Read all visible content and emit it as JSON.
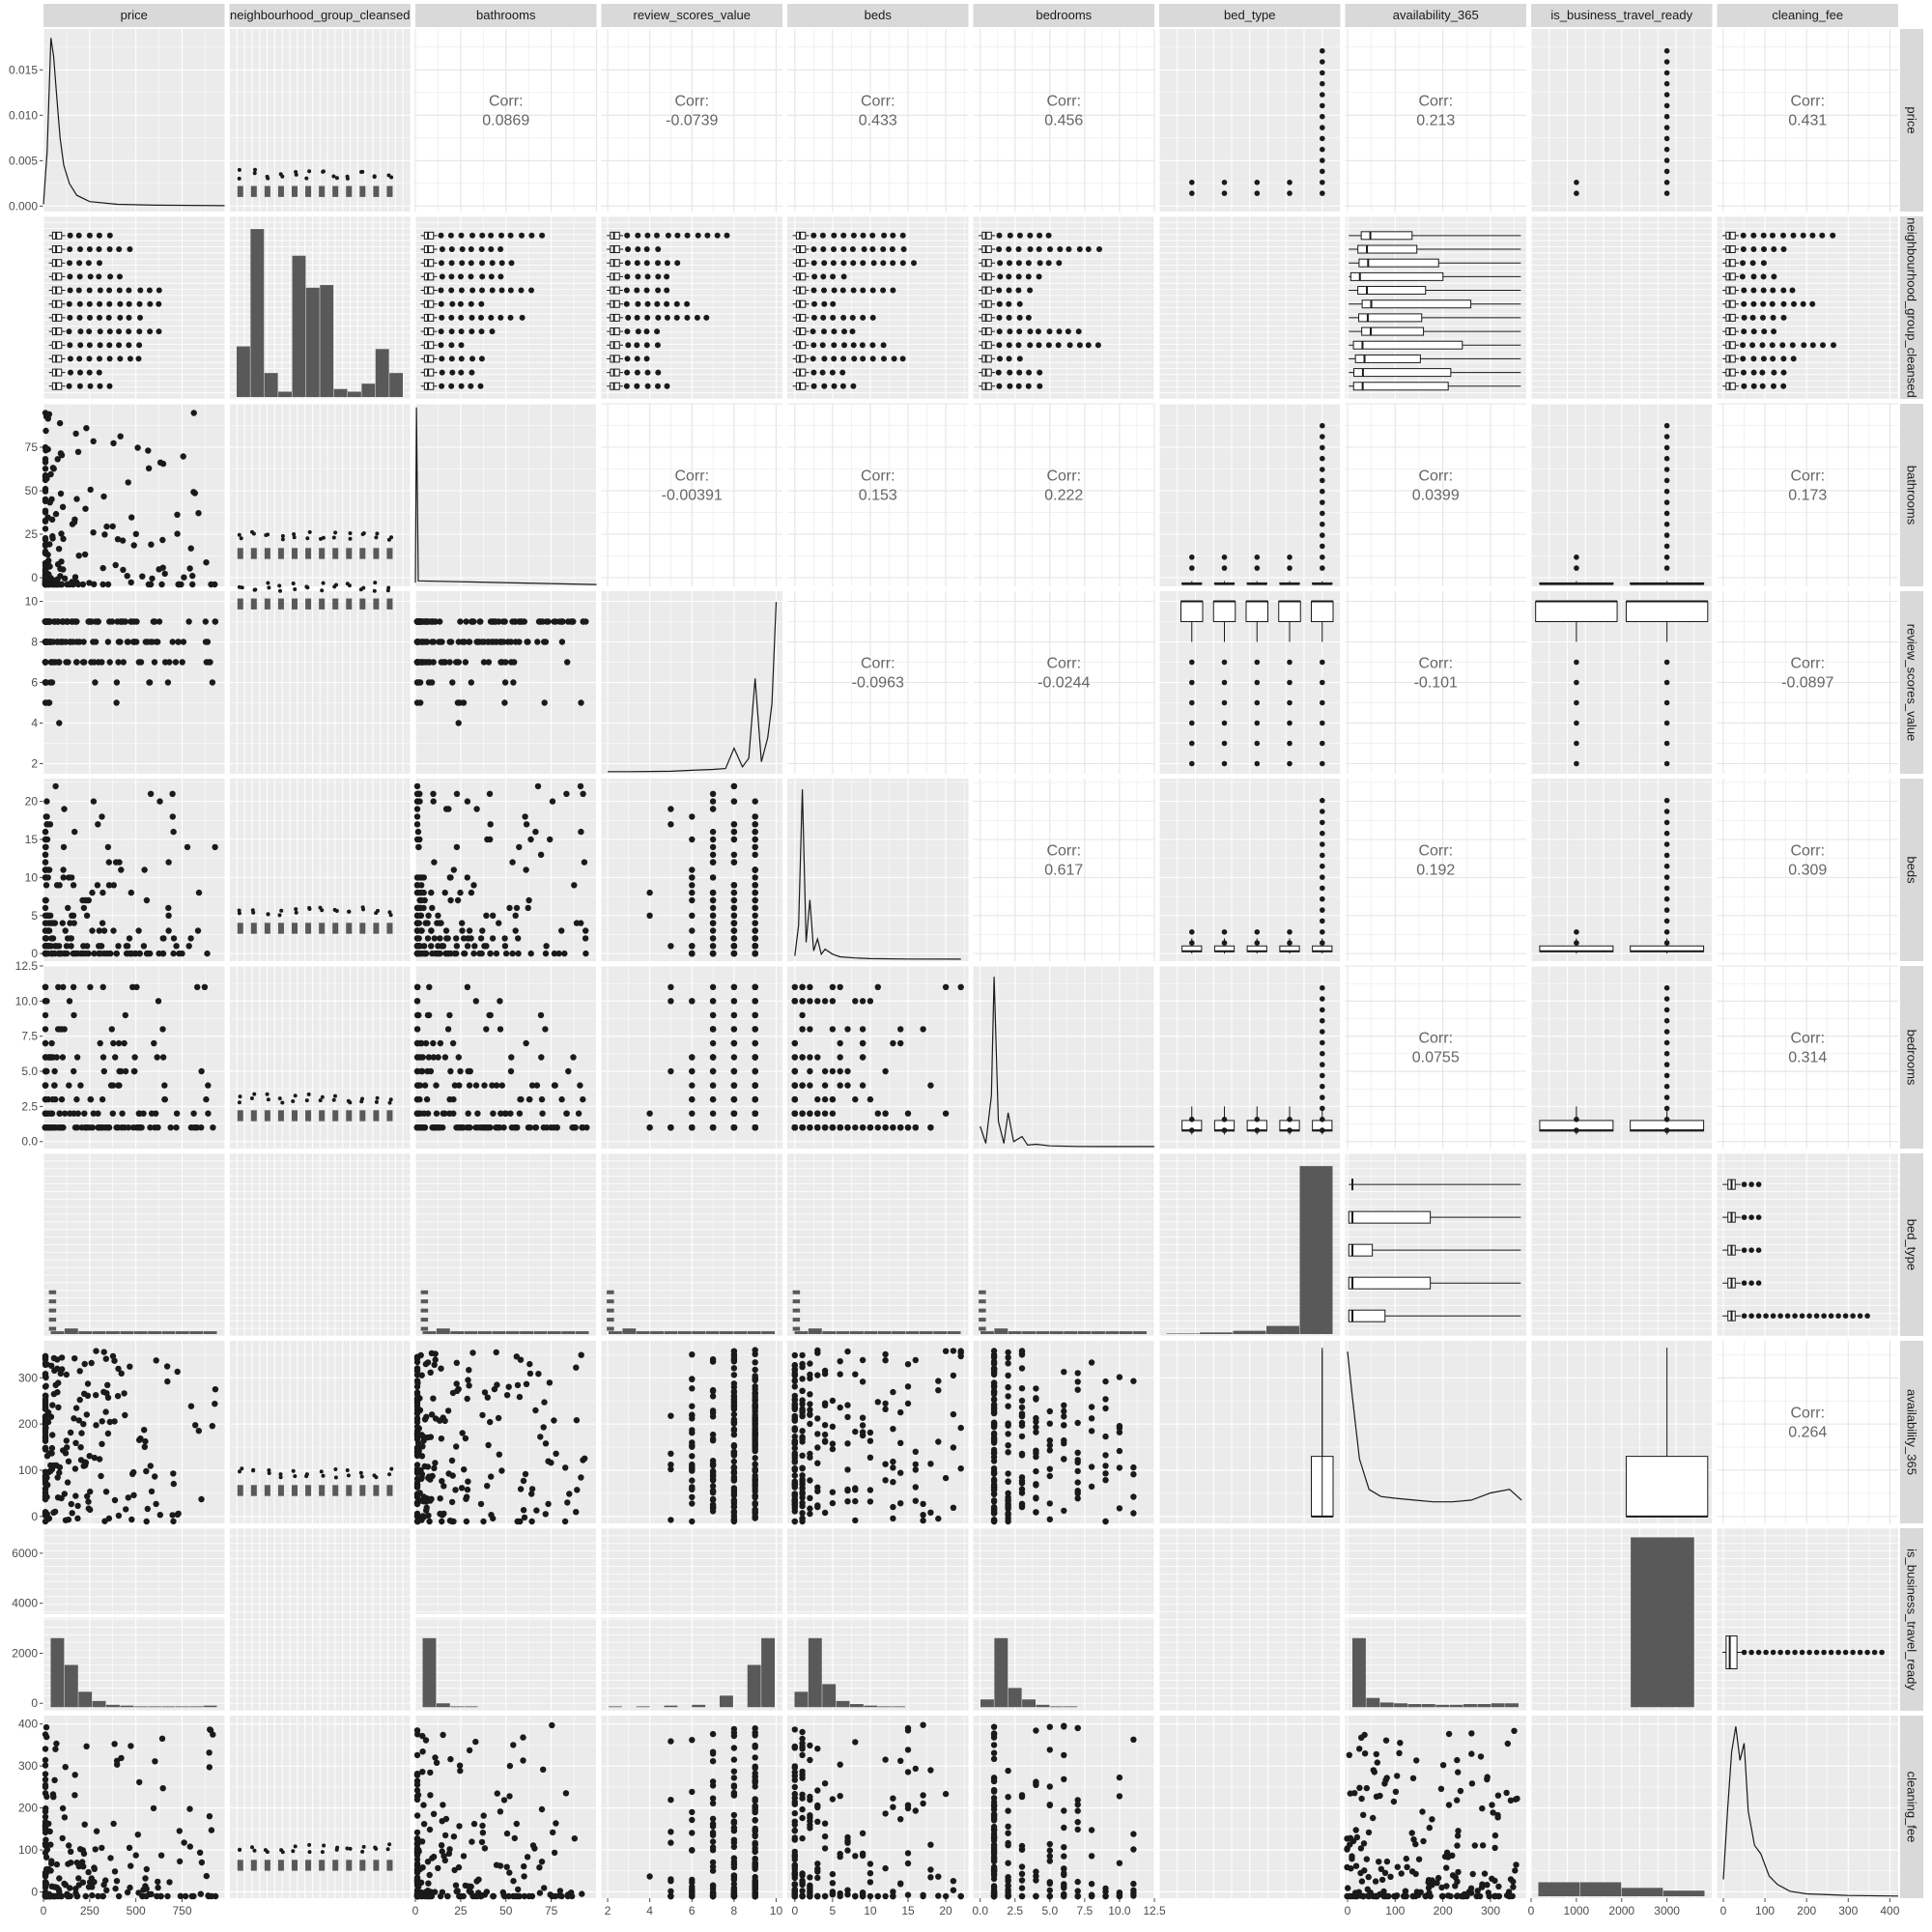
{
  "chart_data": {
    "type": "pairs",
    "grid": true,
    "legend": "none",
    "colors": {
      "panel_bg": "#ebebeb",
      "grid_line": "#ffffff",
      "strip_bg": "#d9d9d9",
      "mark": "#1a1a1a",
      "bar_fill": "#595959",
      "corr_text": "#666666"
    },
    "variables": [
      "price",
      "neighbourhood_group_cleansed",
      "bathrooms",
      "review_scores_value",
      "beds",
      "bedrooms",
      "bed_type",
      "availability_365",
      "is_business_travel_ready",
      "cleaning_fee"
    ],
    "column_ticks": [
      [
        "0",
        "250",
        "500",
        "750"
      ],
      [],
      [
        "0",
        "25",
        "50",
        "75"
      ],
      [
        "2",
        "4",
        "6",
        "8",
        "10"
      ],
      [
        "0",
        "5",
        "10",
        "15",
        "20"
      ],
      [
        "0.0",
        "2.5",
        "5.0",
        "7.5",
        "10.0",
        "12.5"
      ],
      [],
      [
        "0",
        "100",
        "200",
        "300"
      ],
      [
        "0",
        "1000",
        "2000",
        "3000"
      ],
      [
        "0",
        "100",
        "200",
        "300",
        "400"
      ]
    ],
    "column_xlim": [
      [
        0,
        980
      ],
      [
        0,
        1
      ],
      [
        0,
        100
      ],
      [
        1.7,
        10.3
      ],
      [
        -1,
        23
      ],
      [
        -0.5,
        12.5
      ],
      [
        0,
        1
      ],
      [
        -5,
        375
      ],
      [
        0,
        4000
      ],
      [
        -15,
        420
      ]
    ],
    "row_ticks": [
      [
        "0.000",
        "0.005",
        "0.010",
        "0.015"
      ],
      [],
      [
        "0",
        "25",
        "50",
        "75"
      ],
      [
        "2",
        "4",
        "6",
        "8",
        "10"
      ],
      [
        "0",
        "5",
        "10",
        "15",
        "20"
      ],
      [
        "0.0",
        "2.5",
        "5.0",
        "7.5",
        "10.0",
        "12.5"
      ],
      [],
      [
        "0",
        "100",
        "200",
        "300"
      ],
      [
        "0",
        "2000",
        "4000",
        "6000"
      ],
      [
        "0",
        "100",
        "200",
        "300",
        "400"
      ]
    ],
    "row_ylim": [
      [
        -0.0006,
        0.0195
      ],
      [
        0,
        1
      ],
      [
        -5,
        100
      ],
      [
        1.5,
        10.5
      ],
      [
        -1,
        23
      ],
      [
        -0.5,
        12.5
      ],
      [
        0,
        1
      ],
      [
        -15,
        380
      ],
      [
        -300,
        7000
      ],
      [
        -15,
        420
      ]
    ],
    "correlations": [
      {
        "row": 0,
        "col": 2,
        "label": "Corr:",
        "value": "0.0869"
      },
      {
        "row": 0,
        "col": 3,
        "label": "Corr:",
        "value": "-0.0739"
      },
      {
        "row": 0,
        "col": 4,
        "label": "Corr:",
        "value": "0.433"
      },
      {
        "row": 0,
        "col": 5,
        "label": "Corr:",
        "value": "0.456"
      },
      {
        "row": 0,
        "col": 7,
        "label": "Corr:",
        "value": "0.213"
      },
      {
        "row": 0,
        "col": 9,
        "label": "Corr:",
        "value": "0.431"
      },
      {
        "row": 2,
        "col": 3,
        "label": "Corr:",
        "value": "-0.00391"
      },
      {
        "row": 2,
        "col": 4,
        "label": "Corr:",
        "value": "0.153"
      },
      {
        "row": 2,
        "col": 5,
        "label": "Corr:",
        "value": "0.222"
      },
      {
        "row": 2,
        "col": 7,
        "label": "Corr:",
        "value": "0.0399"
      },
      {
        "row": 2,
        "col": 9,
        "label": "Corr:",
        "value": "0.173"
      },
      {
        "row": 3,
        "col": 4,
        "label": "Corr:",
        "value": "-0.0963"
      },
      {
        "row": 3,
        "col": 5,
        "label": "Corr:",
        "value": "-0.0244"
      },
      {
        "row": 3,
        "col": 7,
        "label": "Corr:",
        "value": "-0.101"
      },
      {
        "row": 3,
        "col": 9,
        "label": "Corr:",
        "value": "-0.0897"
      },
      {
        "row": 4,
        "col": 5,
        "label": "Corr:",
        "value": "0.617"
      },
      {
        "row": 4,
        "col": 7,
        "label": "Corr:",
        "value": "0.192"
      },
      {
        "row": 4,
        "col": 9,
        "label": "Corr:",
        "value": "0.309"
      },
      {
        "row": 5,
        "col": 7,
        "label": "Corr:",
        "value": "0.0755"
      },
      {
        "row": 5,
        "col": 9,
        "label": "Corr:",
        "value": "0.314"
      },
      {
        "row": 7,
        "col": 9,
        "label": "Corr:",
        "value": "0.264"
      }
    ],
    "price_density": {
      "x": [
        0,
        20,
        40,
        55,
        70,
        90,
        110,
        140,
        180,
        250,
        400,
        600,
        980
      ],
      "y": [
        0.0002,
        0.006,
        0.0185,
        0.0165,
        0.0125,
        0.0075,
        0.0045,
        0.0025,
        0.0012,
        0.0005,
        0.0002,
        0.0001,
        5e-05
      ]
    },
    "neighbourhood_counts": [
      1900,
      6300,
      900,
      200,
      5300,
      4100,
      4200,
      300,
      200,
      500,
      1800,
      900
    ],
    "review_scores_density": {
      "x": [
        2,
        3,
        4,
        5,
        6,
        7,
        7.6,
        8,
        8.4,
        8.7,
        9,
        9.3,
        9.6,
        9.8,
        10
      ],
      "y": [
        0.002,
        0.002,
        0.003,
        0.004,
        0.01,
        0.015,
        0.02,
        0.14,
        0.03,
        0.08,
        0.55,
        0.06,
        0.2,
        0.4,
        1.0
      ]
    },
    "beds_density": {
      "x": [
        0,
        0.5,
        1,
        1.5,
        2,
        2.5,
        3,
        3.5,
        4,
        5,
        6,
        8,
        10,
        15,
        22
      ],
      "y": [
        0.02,
        0.2,
        1.0,
        0.1,
        0.35,
        0.05,
        0.12,
        0.03,
        0.06,
        0.03,
        0.015,
        0.008,
        0.004,
        0.002,
        0.001
      ]
    },
    "bedrooms_density": {
      "x": [
        0,
        0.4,
        0.8,
        1,
        1.3,
        1.7,
        2,
        2.4,
        3,
        3.4,
        4,
        5,
        7,
        10,
        12.5
      ],
      "y": [
        0.12,
        0.02,
        0.3,
        1.0,
        0.15,
        0.02,
        0.2,
        0.03,
        0.06,
        0.01,
        0.015,
        0.005,
        0.002,
        0.001,
        0.001
      ]
    },
    "bed_type_counts": [
      20,
      60,
      120,
      300,
      6200
    ],
    "availability_density": {
      "x": [
        0,
        10,
        25,
        45,
        70,
        100,
        140,
        180,
        220,
        260,
        300,
        340,
        365
      ],
      "y": [
        0.95,
        0.7,
        0.35,
        0.18,
        0.14,
        0.13,
        0.12,
        0.11,
        0.11,
        0.12,
        0.16,
        0.18,
        0.12
      ]
    },
    "business_travel_counts": [
      6300
    ],
    "cleaning_fee_density": {
      "x": [
        0,
        10,
        20,
        30,
        40,
        50,
        60,
        75,
        90,
        110,
        130,
        160,
        200,
        300,
        420
      ],
      "y": [
        0.1,
        0.5,
        0.85,
        1.0,
        0.8,
        0.9,
        0.5,
        0.3,
        0.25,
        0.12,
        0.07,
        0.03,
        0.015,
        0.005,
        0.002
      ]
    }
  }
}
